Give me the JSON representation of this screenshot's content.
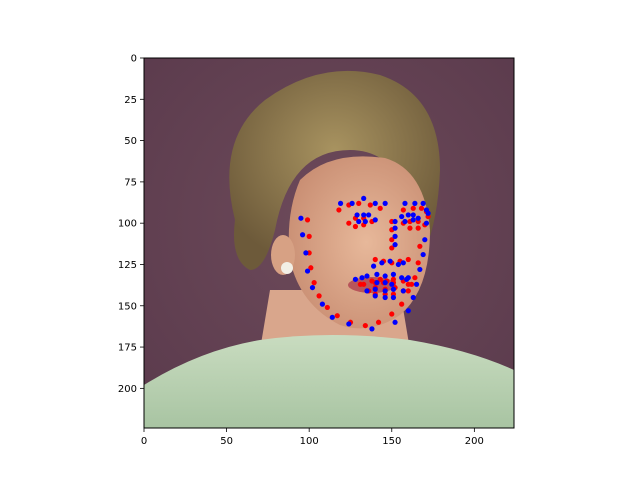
{
  "chart_data": {
    "type": "scatter",
    "title": "",
    "xlabel": "",
    "ylabel": "",
    "xlim": [
      0,
      224
    ],
    "ylim": [
      224,
      0
    ],
    "x_ticks": [
      0,
      50,
      100,
      150,
      200
    ],
    "y_ticks": [
      0,
      25,
      50,
      75,
      100,
      125,
      150,
      175,
      200
    ],
    "grid": false,
    "legend": "none",
    "background": "photo-face",
    "series": [
      {
        "color": "#ff0000",
        "points": [
          [
            99,
            98
          ],
          [
            100,
            108
          ],
          [
            100,
            118
          ],
          [
            101,
            127
          ],
          [
            103,
            136
          ],
          [
            106,
            144
          ],
          [
            111,
            151
          ],
          [
            117,
            156
          ],
          [
            125,
            160
          ],
          [
            134,
            162
          ],
          [
            142,
            160
          ],
          [
            150,
            155
          ],
          [
            156,
            149
          ],
          [
            160,
            141
          ],
          [
            164,
            133
          ],
          [
            166,
            124
          ],
          [
            167,
            114
          ],
          [
            118,
            92
          ],
          [
            124,
            89
          ],
          [
            130,
            88
          ],
          [
            137,
            89
          ],
          [
            143,
            91
          ],
          [
            157,
            92
          ],
          [
            163,
            91
          ],
          [
            168,
            91
          ],
          [
            171,
            93
          ],
          [
            172,
            96
          ],
          [
            150,
            99
          ],
          [
            150,
            104
          ],
          [
            150,
            110
          ],
          [
            150,
            115
          ],
          [
            140,
            122
          ],
          [
            145,
            123
          ],
          [
            150,
            124
          ],
          [
            155,
            123
          ],
          [
            160,
            122
          ],
          [
            124,
            100
          ],
          [
            128,
            97
          ],
          [
            133,
            97
          ],
          [
            138,
            99
          ],
          [
            133,
            101
          ],
          [
            128,
            102
          ],
          [
            157,
            100
          ],
          [
            161,
            99
          ],
          [
            166,
            99
          ],
          [
            170,
            101
          ],
          [
            166,
            103
          ],
          [
            161,
            103
          ],
          [
            131,
            137
          ],
          [
            138,
            135
          ],
          [
            143,
            134
          ],
          [
            147,
            135
          ],
          [
            151,
            134
          ],
          [
            157,
            135
          ],
          [
            162,
            137
          ],
          [
            157,
            141
          ],
          [
            151,
            143
          ],
          [
            146,
            143
          ],
          [
            140,
            143
          ],
          [
            136,
            141
          ],
          [
            133,
            137
          ],
          [
            140,
            136
          ],
          [
            145,
            136
          ],
          [
            151,
            136
          ],
          [
            160,
            137
          ],
          [
            152,
            139
          ],
          [
            146,
            140
          ],
          [
            140,
            139
          ]
        ]
      },
      {
        "color": "#0000ff",
        "points": [
          [
            95,
            97
          ],
          [
            96,
            107
          ],
          [
            98,
            118
          ],
          [
            99,
            129
          ],
          [
            102,
            139
          ],
          [
            108,
            149
          ],
          [
            114,
            157
          ],
          [
            124,
            161
          ],
          [
            138,
            164
          ],
          [
            152,
            160
          ],
          [
            160,
            153
          ],
          [
            163,
            145
          ],
          [
            165,
            137
          ],
          [
            167,
            128
          ],
          [
            169,
            119
          ],
          [
            170,
            110
          ],
          [
            171,
            100
          ],
          [
            119,
            88
          ],
          [
            126,
            88
          ],
          [
            133,
            85
          ],
          [
            140,
            88
          ],
          [
            146,
            88
          ],
          [
            158,
            88
          ],
          [
            164,
            88
          ],
          [
            169,
            88
          ],
          [
            171,
            92
          ],
          [
            172,
            94
          ],
          [
            152,
            99
          ],
          [
            152,
            103
          ],
          [
            152,
            108
          ],
          [
            152,
            113
          ],
          [
            139,
            126
          ],
          [
            144,
            124
          ],
          [
            149,
            123
          ],
          [
            154,
            125
          ],
          [
            157,
            124
          ],
          [
            129,
            95
          ],
          [
            133,
            95
          ],
          [
            136,
            95
          ],
          [
            140,
            98
          ],
          [
            134,
            99
          ],
          [
            130,
            99
          ],
          [
            156,
            96
          ],
          [
            160,
            95
          ],
          [
            163,
            95
          ],
          [
            166,
            97
          ],
          [
            163,
            98
          ],
          [
            158,
            99
          ],
          [
            128,
            134
          ],
          [
            135,
            132
          ],
          [
            141,
            131
          ],
          [
            146,
            132
          ],
          [
            151,
            131
          ],
          [
            156,
            133
          ],
          [
            160,
            133
          ],
          [
            157,
            141
          ],
          [
            151,
            145
          ],
          [
            146,
            145
          ],
          [
            140,
            144
          ],
          [
            135,
            141
          ],
          [
            132,
            133
          ],
          [
            141,
            136
          ],
          [
            146,
            136
          ],
          [
            150,
            137
          ],
          [
            159,
            134
          ],
          [
            151,
            140
          ],
          [
            146,
            141
          ],
          [
            140,
            140
          ]
        ]
      }
    ]
  }
}
